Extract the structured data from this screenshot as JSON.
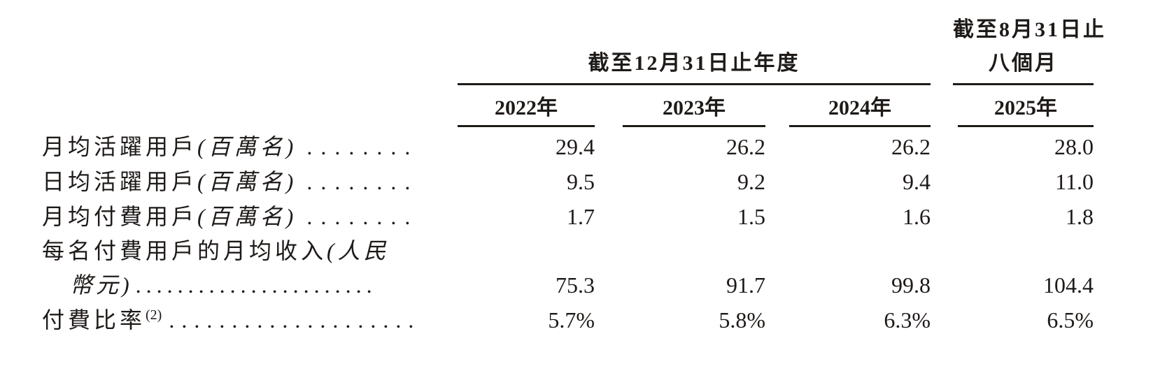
{
  "document": {
    "background": "#ffffff",
    "ink": "#1e1a18"
  },
  "header": {
    "group1": {
      "title": "截至12月31日止年度",
      "years": [
        "2022年",
        "2023年",
        "2024年"
      ]
    },
    "group2": {
      "title_line1": "截至8月31日止",
      "title_line2": "八個月",
      "year": "2025年"
    }
  },
  "rows": [
    {
      "label": "月均活躍用戶",
      "unit": "(百萬名)",
      "leader": "........",
      "values": [
        "29.4",
        "26.2",
        "26.2",
        "28.0"
      ]
    },
    {
      "label": "日均活躍用戶",
      "unit": "(百萬名)",
      "leader": "........",
      "values": [
        "9.5",
        "9.2",
        "9.4",
        "11.0"
      ]
    },
    {
      "label": "月均付費用戶",
      "unit": "(百萬名)",
      "leader": "........",
      "values": [
        "1.7",
        "1.5",
        "1.6",
        "1.8"
      ]
    },
    {
      "label": "每名付費用戶的月均收入",
      "unit": "(人民",
      "unit_continued": "幣元)",
      "leader": ".......................",
      "values": [
        "75.3",
        "91.7",
        "99.8",
        "104.4"
      ]
    },
    {
      "label": "付費比率",
      "footnote_ref": "(2)",
      "leader": "....................",
      "values": [
        "5.7%",
        "5.8%",
        "6.3%",
        "6.5%"
      ]
    }
  ]
}
